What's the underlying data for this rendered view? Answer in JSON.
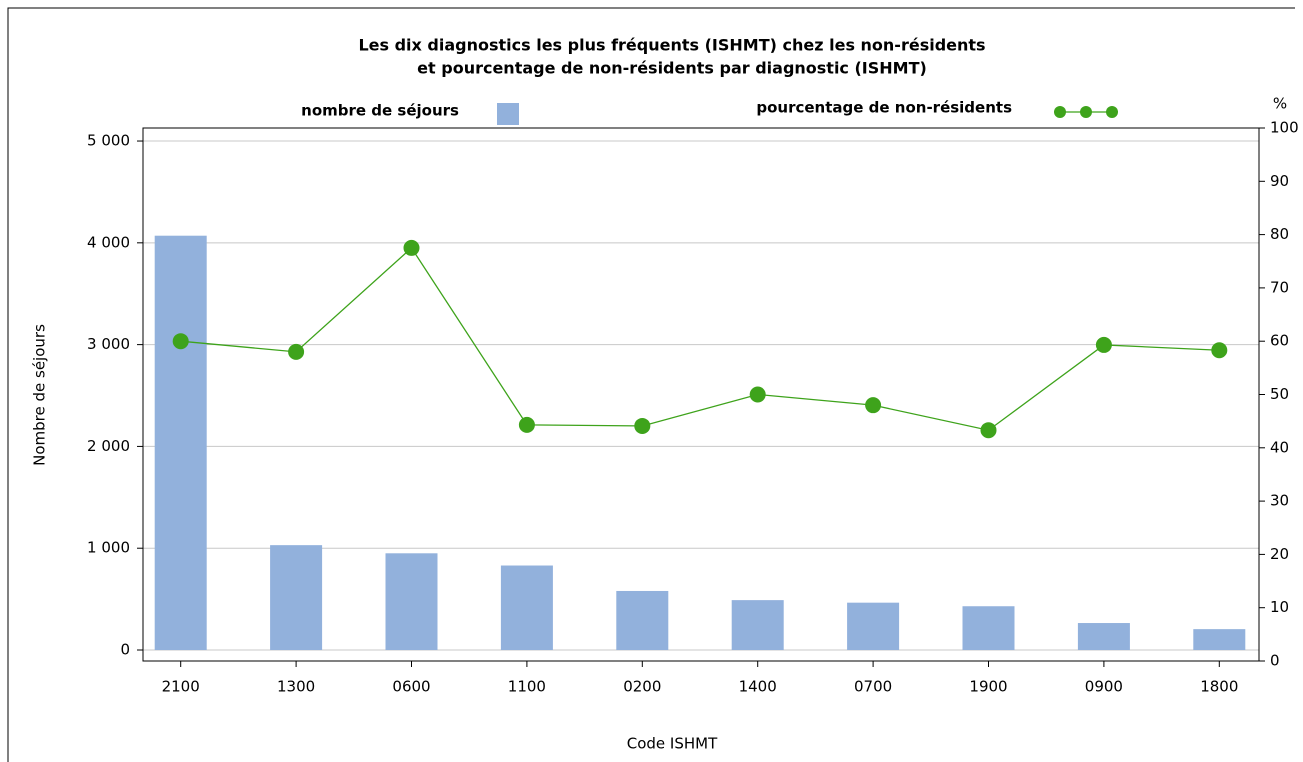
{
  "chart_data": {
    "type": "bar_line",
    "title": [
      "Les dix diagnostics les plus fréquents (ISHMT) chez les non-résidents",
      "et pourcentage de non-résidents par diagnostic (ISHMT)"
    ],
    "x_label": "Code ISHMT",
    "y_label": "Nombre de séjours",
    "y2_label": "%",
    "categories": [
      "2100",
      "1300",
      "0600",
      "1100",
      "0200",
      "1400",
      "0700",
      "1900",
      "0900",
      "1800"
    ],
    "series": [
      {
        "name": "nombre de séjours",
        "color": "#92b1dc",
        "values": [
          4070,
          1030,
          950,
          830,
          580,
          490,
          465,
          430,
          265,
          205
        ]
      },
      {
        "name": "pourcentage de non-résidents",
        "color": "#3ea31b",
        "axis": "y2",
        "values": [
          60,
          58,
          77.5,
          44.3,
          44.1,
          50,
          48,
          43.3,
          59.3,
          58.3
        ]
      }
    ],
    "ylim": [
      -108,
      5128
    ],
    "yticks": [
      0,
      {
        "value": 1000,
        "label": "1 000"
      },
      {
        "value": 2000,
        "label": "2 000"
      },
      {
        "value": 3000,
        "label": "3 000"
      },
      {
        "value": 4000,
        "label": "4 000"
      },
      {
        "value": 5000,
        "label": "5 000"
      }
    ],
    "y2lim": [
      0,
      100
    ],
    "y2ticks": [
      0,
      10,
      20,
      30,
      40,
      50,
      60,
      70,
      80,
      90,
      100
    ],
    "grid": true
  }
}
